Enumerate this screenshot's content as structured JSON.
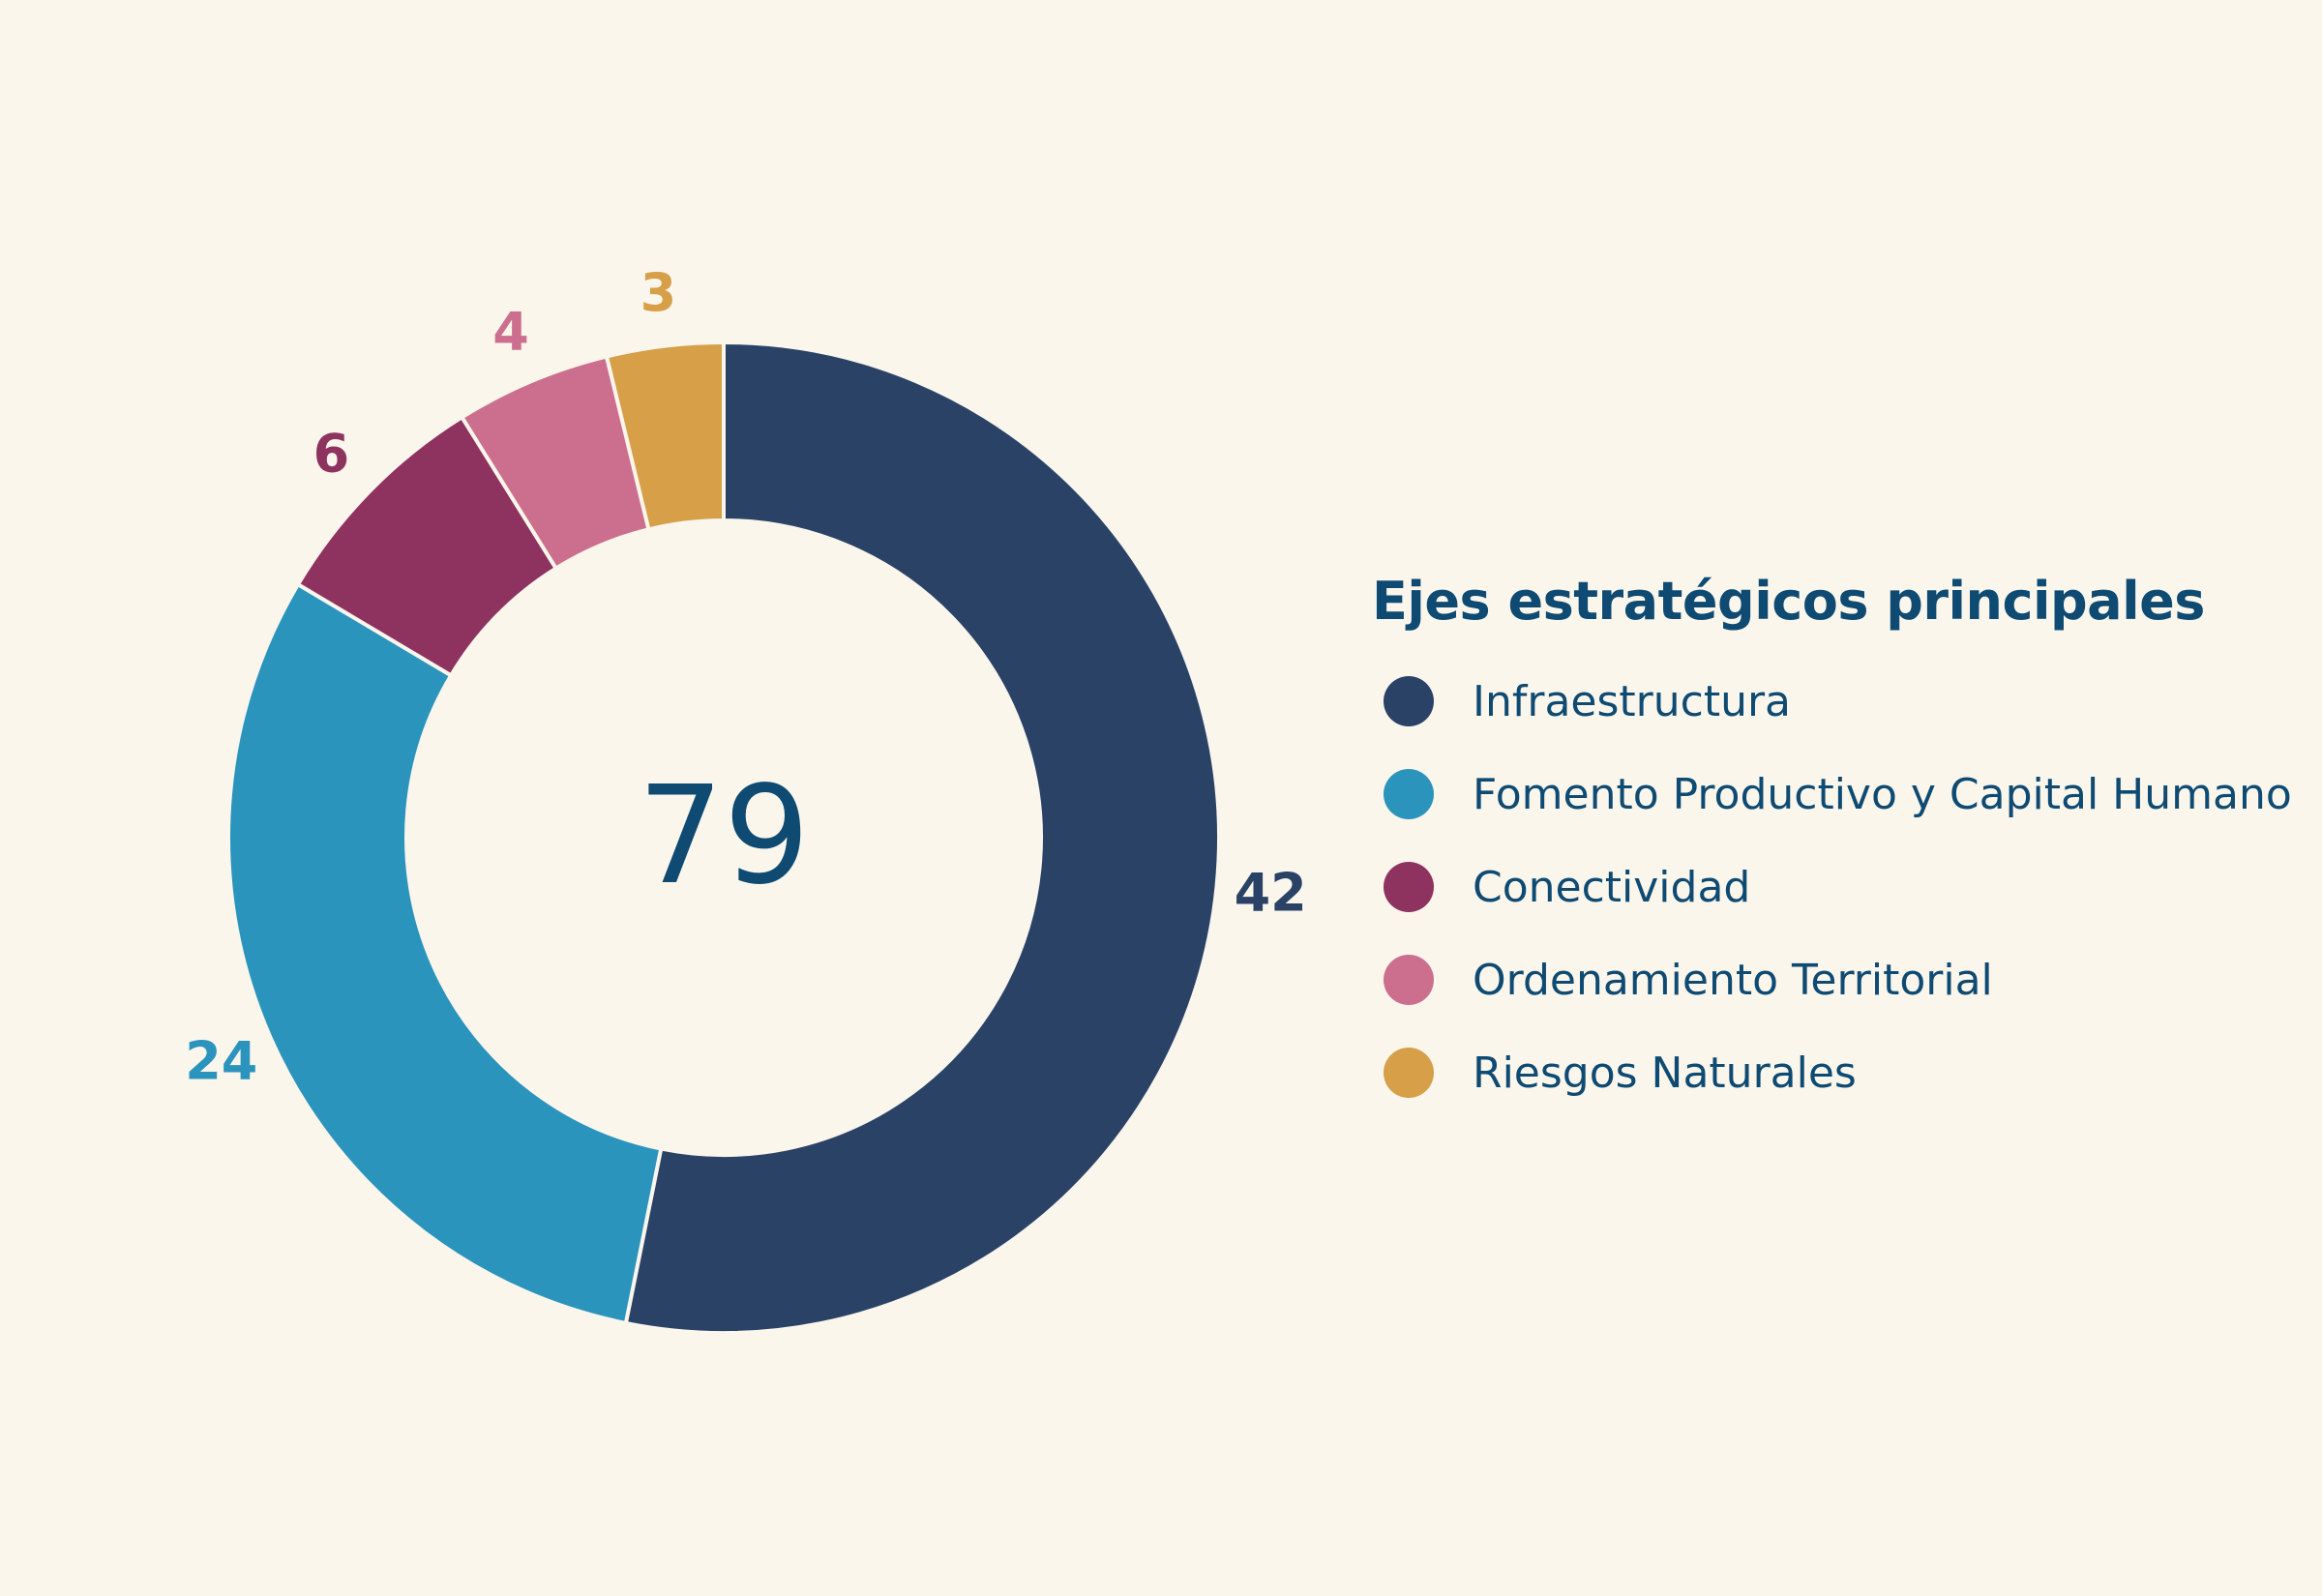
{
  "chart_data": {
    "type": "pie",
    "variant": "donut",
    "title": "",
    "legend_title": "Ejes estratégicos principales",
    "legend_position": "right",
    "center_total": "79",
    "series": [
      {
        "name": "Infraestructura",
        "value": 42,
        "color": "#2b4267"
      },
      {
        "name": "Fomento Productivo y Capital Humano",
        "value": 24,
        "color": "#2b94bd"
      },
      {
        "name": "Conectividad",
        "value": 6,
        "color": "#8e3260"
      },
      {
        "name": "Ordenamiento Territorial",
        "value": 4,
        "color": "#cc6f8e"
      },
      {
        "name": "Riesgos Naturales",
        "value": 3,
        "color": "#d69f48"
      }
    ],
    "center_text_color": "#0e4a72",
    "separator_color": "#faf6ec"
  }
}
